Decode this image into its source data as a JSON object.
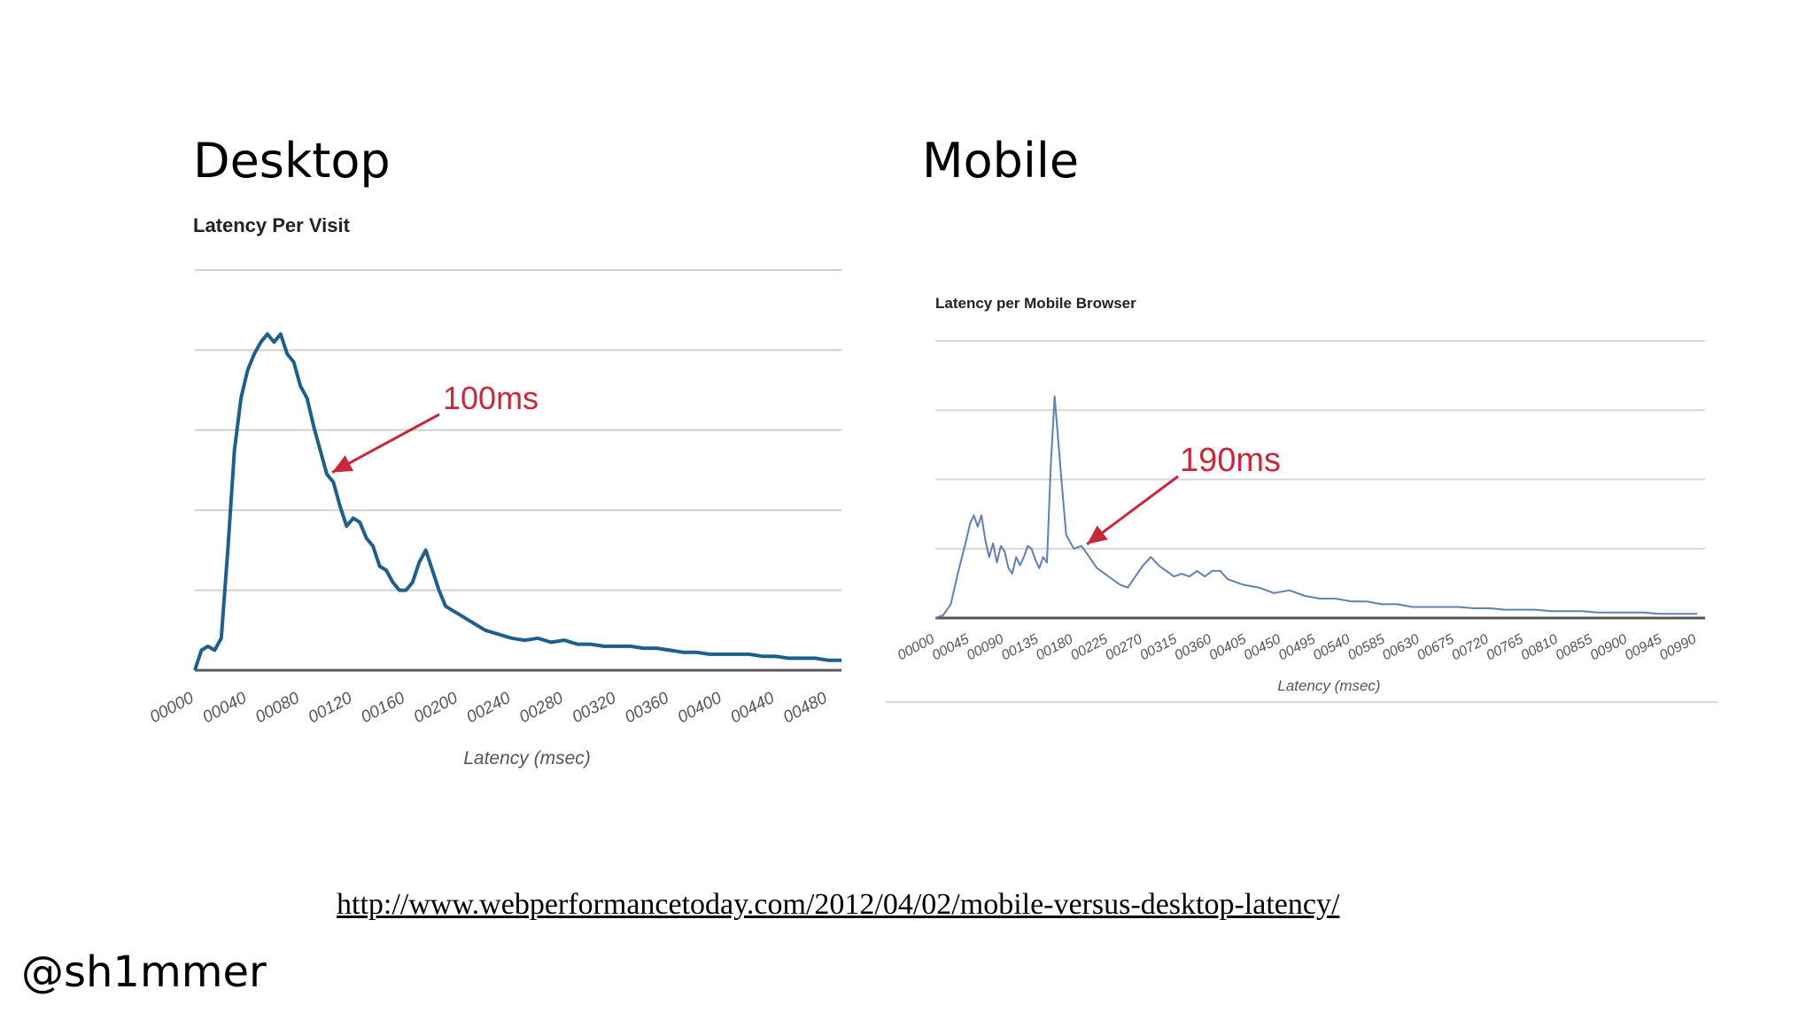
{
  "headings": {
    "desktop": "Desktop",
    "mobile": "Mobile"
  },
  "source_url": "http://www.webperformancetoday.com/2012/04/02/mobile-versus-desktop-latency/",
  "twitter_handle": "@sh1mmer",
  "chart_data": [
    {
      "id": "desktop",
      "type": "line",
      "title": "Latency Per Visit",
      "xlabel": "Latency (msec)",
      "ylabel": "",
      "grid": true,
      "legend": "none",
      "color": "#1f5f8b",
      "annotation_color": "#c8283c",
      "xlim": [
        0,
        490
      ],
      "ylim": [
        0,
        100
      ],
      "x_ticks": [
        "00000",
        "00040",
        "00080",
        "00120",
        "00160",
        "00200",
        "00240",
        "00280",
        "00320",
        "00360",
        "00400",
        "00440",
        "00480"
      ],
      "x_tick_values": [
        0,
        40,
        80,
        120,
        160,
        200,
        240,
        280,
        320,
        360,
        400,
        440,
        480
      ],
      "y_grid": [
        20,
        40,
        60,
        80,
        100
      ],
      "series": [
        {
          "x": [
            0,
            5,
            10,
            15,
            20,
            25,
            30,
            35,
            40,
            45,
            50,
            55,
            60,
            65,
            70,
            75,
            80,
            85,
            90,
            95,
            100,
            105,
            110,
            115,
            120,
            125,
            130,
            135,
            140,
            145,
            150,
            155,
            160,
            165,
            170,
            175,
            180,
            185,
            190,
            195,
            200,
            210,
            220,
            230,
            240,
            250,
            260,
            270,
            280,
            290,
            300,
            310,
            320,
            330,
            340,
            350,
            360,
            370,
            380,
            390,
            400,
            410,
            420,
            430,
            440,
            450,
            460,
            470,
            480,
            490
          ],
          "values": [
            0,
            5,
            6,
            5,
            8,
            30,
            55,
            68,
            75,
            79,
            82,
            84,
            82,
            84,
            79,
            77,
            71,
            68,
            61,
            55,
            49,
            47,
            41,
            36,
            38,
            37,
            33,
            31,
            26,
            25,
            22,
            20,
            20,
            22,
            27,
            30,
            25,
            20,
            16,
            15,
            14,
            12,
            10,
            9,
            8,
            7.5,
            8,
            7,
            7.5,
            6.5,
            6.5,
            6,
            6,
            6,
            5.5,
            5.5,
            5,
            4.5,
            4.5,
            4,
            4,
            4,
            4,
            3.5,
            3.5,
            3,
            3,
            3,
            2.5,
            2.5
          ]
        }
      ],
      "annotation": {
        "label": "100ms",
        "x": 100
      }
    },
    {
      "id": "mobile",
      "type": "line",
      "title": "Latency per Mobile Browser",
      "xlabel": "Latency (msec)",
      "ylabel": "",
      "grid": true,
      "legend": "none",
      "color": "#6080b0",
      "annotation_color": "#c8283c",
      "xlim": [
        0,
        1000
      ],
      "ylim": [
        0,
        100
      ],
      "x_ticks": [
        "00000",
        "00045",
        "00090",
        "00135",
        "00180",
        "00225",
        "00270",
        "00315",
        "00360",
        "00405",
        "00450",
        "00495",
        "00540",
        "00585",
        "00630",
        "00675",
        "00720",
        "00765",
        "00810",
        "00855",
        "00900",
        "00945",
        "00990"
      ],
      "x_tick_values": [
        0,
        45,
        90,
        135,
        180,
        225,
        270,
        315,
        360,
        405,
        450,
        495,
        540,
        585,
        630,
        675,
        720,
        765,
        810,
        855,
        900,
        945,
        990
      ],
      "y_grid": [
        25,
        50,
        75,
        100
      ],
      "series": [
        {
          "x": [
            0,
            10,
            20,
            30,
            40,
            45,
            50,
            55,
            60,
            65,
            70,
            75,
            80,
            85,
            90,
            95,
            100,
            105,
            110,
            115,
            120,
            125,
            130,
            135,
            140,
            145,
            150,
            155,
            160,
            165,
            170,
            180,
            190,
            200,
            210,
            220,
            230,
            240,
            250,
            260,
            270,
            280,
            290,
            300,
            310,
            320,
            330,
            340,
            350,
            360,
            370,
            380,
            390,
            400,
            420,
            440,
            460,
            480,
            500,
            520,
            540,
            560,
            580,
            600,
            620,
            640,
            660,
            680,
            700,
            720,
            740,
            760,
            780,
            800,
            820,
            840,
            860,
            880,
            900,
            920,
            940,
            960,
            980,
            990
          ],
          "values": [
            0,
            1,
            5,
            17,
            28,
            34,
            37,
            33,
            37,
            28,
            22,
            27,
            20,
            26,
            24,
            18,
            16,
            22,
            19,
            22,
            26,
            25,
            21,
            18,
            22,
            20,
            55,
            80,
            63,
            46,
            30,
            25,
            26,
            22,
            18,
            16,
            14,
            12,
            11,
            15,
            19,
            22,
            19,
            17,
            15,
            16,
            15,
            17,
            15,
            17,
            17,
            14,
            13,
            12,
            11,
            9,
            10,
            8,
            7,
            7,
            6,
            6,
            5,
            5,
            4,
            4,
            4,
            4,
            3.5,
            3.5,
            3,
            3,
            3,
            2.5,
            2.5,
            2.5,
            2,
            2,
            2,
            2,
            1.5,
            1.5,
            1.5,
            1.5
          ]
        }
      ],
      "annotation": {
        "label": "190ms",
        "x": 190
      }
    }
  ]
}
